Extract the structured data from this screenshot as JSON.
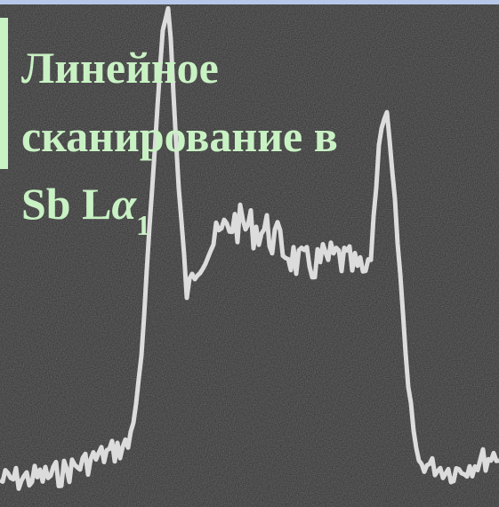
{
  "caption": {
    "lines": [
      "Линейное",
      "сканирование в"
    ],
    "last_line": {
      "text": "Sb L",
      "symbol": "α",
      "subscript": "1"
    }
  }
}
